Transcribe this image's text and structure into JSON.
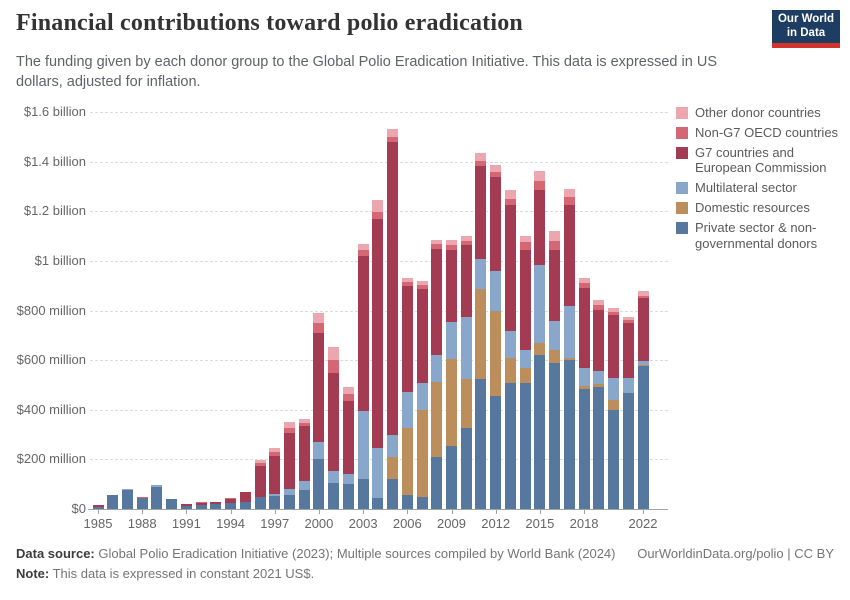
{
  "header": {
    "title": "Financial contributions toward polio eradication",
    "subtitle": "The funding given by each donor group to the Global Polio Eradication Initiative. This data is expressed in US dollars, adjusted for inflation."
  },
  "logo": {
    "line1": "Our World",
    "line2": "in Data"
  },
  "footer": {
    "source_label": "Data source:",
    "source_text": " Global Polio Eradication Initiative (2023); Multiple sources compiled by World Bank (2024)",
    "link": "OurWorldinData.org/polio | CC BY",
    "note_label": "Note:",
    "note_text": " This data is expressed in constant 2021 US$."
  },
  "chart_data": {
    "type": "bar",
    "stacked": true,
    "title": "Financial contributions toward polio eradication",
    "unit": "million US$ (constant 2021)",
    "ylim": [
      0,
      1600
    ],
    "grid": "horizontal-dashed",
    "legend_position": "right",
    "years": [
      1985,
      1986,
      1987,
      1988,
      1989,
      1990,
      1991,
      1992,
      1993,
      1994,
      1995,
      1996,
      1997,
      1998,
      1999,
      2000,
      2001,
      2002,
      2003,
      2004,
      2005,
      2006,
      2007,
      2008,
      2009,
      2010,
      2011,
      2012,
      2013,
      2014,
      2015,
      2016,
      2017,
      2018,
      2019,
      2020,
      2021,
      2022
    ],
    "xticks": [
      1985,
      1988,
      1991,
      1994,
      1997,
      2000,
      2003,
      2006,
      2009,
      2012,
      2015,
      2018,
      2022
    ],
    "yticks": [
      {
        "value": 0,
        "label": "$0"
      },
      {
        "value": 200,
        "label": "$200 million"
      },
      {
        "value": 400,
        "label": "$400 million"
      },
      {
        "value": 600,
        "label": "$600 million"
      },
      {
        "value": 800,
        "label": "$800 million"
      },
      {
        "value": 1000,
        "label": "$1 billion"
      },
      {
        "value": 1200,
        "label": "$1.2 billion"
      },
      {
        "value": 1400,
        "label": "$1.4 billion"
      },
      {
        "value": 1600,
        "label": "$1.6 billion"
      }
    ],
    "series": [
      {
        "name": "Private sector & non-governmental donors",
        "color": "#56789f",
        "values": [
          9,
          55,
          75,
          44,
          90,
          40,
          13,
          18,
          19,
          24,
          29,
          50,
          52,
          58,
          75,
          200,
          105,
          101,
          121,
          46,
          120,
          56,
          50,
          210,
          255,
          328,
          522,
          455,
          509,
          508,
          622,
          588,
          599,
          484,
          492,
          400,
          467,
          575
        ]
      },
      {
        "name": "Domestic resources",
        "color": "#bc8e5c",
        "values": [
          0,
          0,
          0,
          0,
          0,
          0,
          0,
          0,
          0,
          0,
          0,
          0,
          0,
          0,
          0,
          0,
          0,
          0,
          0,
          0,
          90,
          269,
          349,
          300,
          350,
          196,
          364,
          344,
          100,
          60,
          47,
          54,
          10,
          10,
          10,
          40,
          0,
          5
        ]
      },
      {
        "name": "Multilateral sector",
        "color": "#89a7ca",
        "values": [
          0,
          0,
          5,
          0,
          5,
          0,
          0,
          0,
          0,
          0,
          0,
          0,
          10,
          22,
          36,
          70,
          47,
          40,
          275,
          200,
          90,
          148,
          107,
          110,
          148,
          250,
          120,
          162,
          110,
          74,
          316,
          114,
          208,
          74,
          56,
          87,
          60,
          15
        ]
      },
      {
        "name": "G7 countries and European Commission",
        "color": "#a33b52",
        "values": [
          6,
          0,
          0,
          0,
          0,
          0,
          7,
          7,
          9,
          17,
          38,
          122,
          150,
          225,
          222,
          440,
          396,
          294,
          625,
          922,
          1180,
          424,
          381,
          428,
          290,
          290,
          378,
          378,
          506,
          403,
          302,
          289,
          410,
          322,
          245,
          255,
          224,
          255
        ]
      },
      {
        "name": "Non-G7 OECD countries",
        "color": "#d56775",
        "values": [
          0,
          0,
          0,
          3,
          0,
          0,
          2,
          2,
          2,
          2,
          3,
          13,
          17,
          22,
          14,
          40,
          52,
          30,
          23,
          30,
          20,
          17,
          17,
          19,
          20,
          17,
          20,
          20,
          25,
          30,
          34,
          35,
          30,
          20,
          20,
          13,
          12,
          10
        ]
      },
      {
        "name": "Other donor countries",
        "color": "#eba6af",
        "values": [
          0,
          0,
          0,
          0,
          0,
          0,
          0,
          0,
          0,
          0,
          0,
          13,
          18,
          25,
          14,
          42,
          54,
          25,
          24,
          47,
          32,
          16,
          16,
          17,
          20,
          19,
          30,
          28,
          35,
          26,
          40,
          39,
          33,
          20,
          20,
          14,
          12,
          20
        ]
      }
    ]
  }
}
